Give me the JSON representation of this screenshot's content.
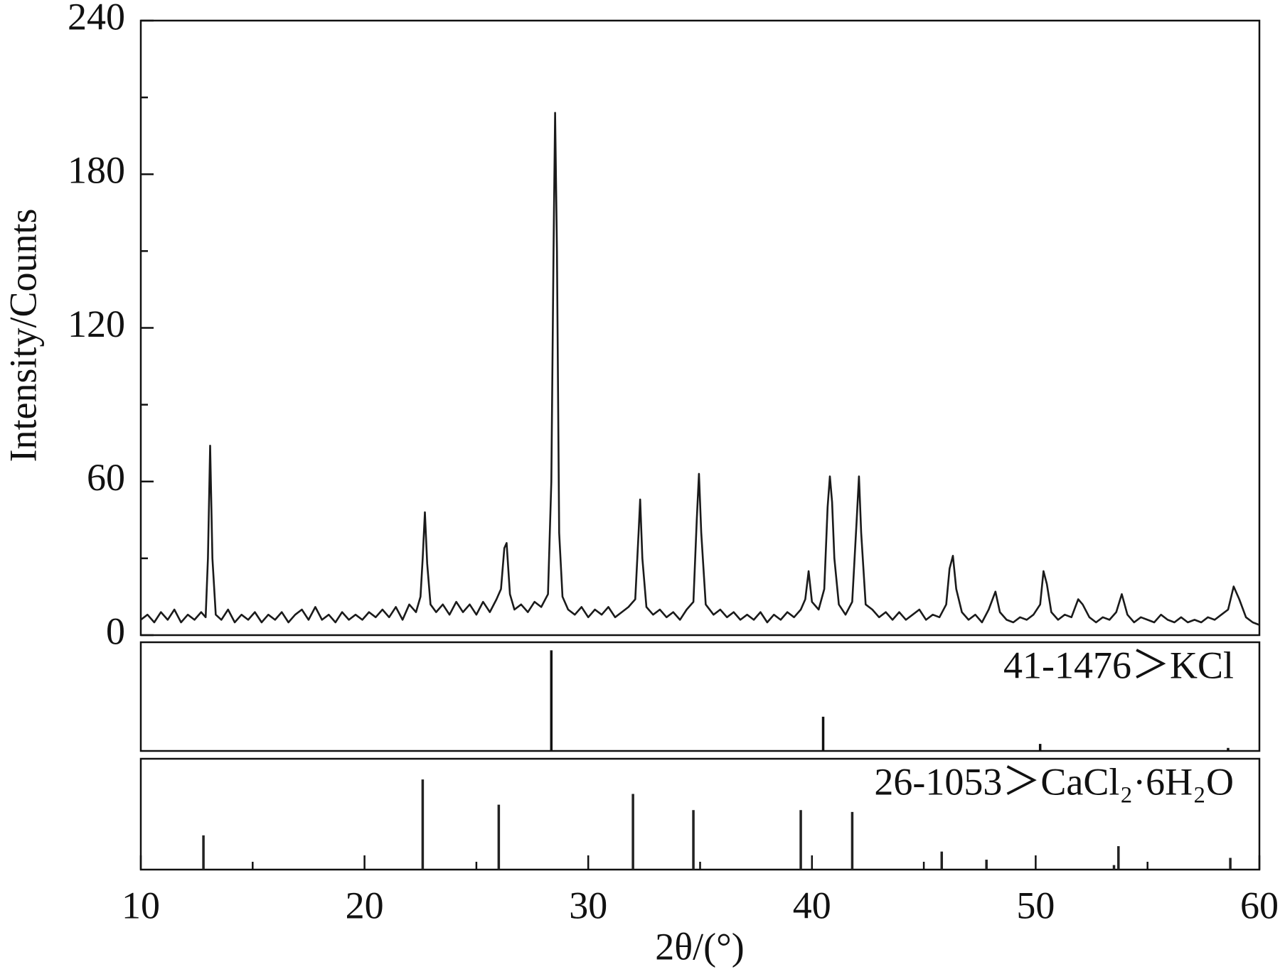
{
  "chart_data": [
    {
      "type": "line",
      "ylabel": "Intensity/Counts",
      "color": "#1a1a1a",
      "ylim": [
        0,
        240
      ],
      "yticks": [
        0,
        60,
        120,
        180,
        240
      ],
      "yminorticks": [
        30,
        90,
        150,
        210
      ],
      "xlim": [
        10,
        60
      ],
      "x": [
        10.0,
        10.3,
        10.6,
        10.9,
        11.2,
        11.5,
        11.8,
        12.1,
        12.4,
        12.7,
        12.9,
        13.0,
        13.1,
        13.2,
        13.35,
        13.6,
        13.9,
        14.2,
        14.5,
        14.8,
        15.1,
        15.4,
        15.7,
        16.0,
        16.3,
        16.6,
        16.9,
        17.2,
        17.5,
        17.8,
        18.1,
        18.4,
        18.7,
        19.0,
        19.3,
        19.6,
        19.9,
        20.2,
        20.5,
        20.8,
        21.1,
        21.4,
        21.7,
        22.0,
        22.3,
        22.5,
        22.6,
        22.7,
        22.8,
        22.95,
        23.2,
        23.5,
        23.8,
        24.1,
        24.4,
        24.7,
        25.0,
        25.3,
        25.6,
        25.9,
        26.1,
        26.25,
        26.35,
        26.5,
        26.7,
        27.0,
        27.3,
        27.6,
        27.9,
        28.2,
        28.35,
        28.45,
        28.52,
        28.6,
        28.7,
        28.85,
        29.1,
        29.4,
        29.7,
        30.0,
        30.3,
        30.6,
        30.9,
        31.2,
        31.5,
        31.8,
        32.1,
        32.25,
        32.32,
        32.42,
        32.6,
        32.9,
        33.2,
        33.5,
        33.8,
        34.1,
        34.4,
        34.7,
        34.85,
        34.95,
        35.05,
        35.25,
        35.6,
        35.9,
        36.2,
        36.5,
        36.8,
        37.1,
        37.4,
        37.7,
        38.0,
        38.3,
        38.6,
        38.9,
        39.2,
        39.5,
        39.7,
        39.85,
        40.0,
        40.3,
        40.55,
        40.7,
        40.8,
        40.9,
        41.0,
        41.2,
        41.5,
        41.8,
        42.0,
        42.1,
        42.2,
        42.4,
        42.7,
        43.0,
        43.3,
        43.6,
        43.9,
        44.2,
        44.5,
        44.8,
        45.1,
        45.4,
        45.7,
        46.0,
        46.15,
        46.3,
        46.45,
        46.7,
        47.0,
        47.3,
        47.6,
        47.9,
        48.2,
        48.4,
        48.7,
        49.0,
        49.3,
        49.6,
        49.9,
        50.2,
        50.35,
        50.5,
        50.7,
        51.0,
        51.3,
        51.6,
        51.9,
        52.1,
        52.4,
        52.7,
        53.0,
        53.3,
        53.6,
        53.85,
        54.1,
        54.4,
        54.7,
        55.0,
        55.3,
        55.6,
        55.9,
        56.2,
        56.5,
        56.8,
        57.1,
        57.4,
        57.7,
        58.0,
        58.3,
        58.6,
        58.85,
        59.1,
        59.4,
        59.7,
        60.0
      ],
      "values": [
        6,
        8,
        5,
        9,
        6,
        10,
        5,
        8,
        6,
        9,
        7,
        30,
        74,
        30,
        8,
        6,
        10,
        5,
        8,
        6,
        9,
        5,
        8,
        6,
        9,
        5,
        8,
        10,
        6,
        11,
        6,
        8,
        5,
        9,
        6,
        8,
        6,
        9,
        7,
        10,
        7,
        11,
        6,
        12,
        9,
        15,
        30,
        48,
        28,
        12,
        9,
        12,
        8,
        13,
        9,
        12,
        8,
        13,
        9,
        14,
        18,
        34,
        36,
        16,
        10,
        12,
        9,
        13,
        11,
        16,
        60,
        150,
        204,
        150,
        40,
        15,
        10,
        8,
        11,
        7,
        10,
        8,
        11,
        7,
        9,
        11,
        14,
        40,
        53,
        30,
        11,
        8,
        10,
        7,
        9,
        6,
        10,
        13,
        45,
        63,
        40,
        12,
        8,
        10,
        7,
        9,
        6,
        8,
        6,
        9,
        5,
        8,
        6,
        9,
        7,
        10,
        14,
        25,
        13,
        10,
        18,
        50,
        62,
        52,
        30,
        12,
        8,
        13,
        45,
        62,
        40,
        12,
        10,
        7,
        9,
        6,
        9,
        6,
        8,
        10,
        6,
        8,
        7,
        12,
        26,
        31,
        18,
        9,
        6,
        8,
        5,
        10,
        17,
        9,
        6,
        5,
        7,
        6,
        8,
        12,
        25,
        20,
        9,
        6,
        8,
        7,
        14,
        12,
        7,
        5,
        7,
        6,
        9,
        16,
        8,
        5,
        7,
        6,
        5,
        8,
        6,
        5,
        7,
        5,
        6,
        5,
        7,
        6,
        8,
        10,
        19,
        14,
        7,
        5,
        4
      ]
    },
    {
      "type": "stem",
      "label": "41-1476＞KCl",
      "color": "#111",
      "xlim": [
        10,
        60
      ],
      "ylim": [
        0,
        108
      ],
      "x": [
        28.35,
        40.5,
        50.2,
        58.6
      ],
      "values": [
        100,
        34,
        7,
        3
      ]
    },
    {
      "type": "stem",
      "label": "26-1053＞CaCl₂·6H₂O",
      "color": "#222",
      "xlim": [
        10,
        60
      ],
      "ylim": [
        0,
        123
      ],
      "x": [
        12.8,
        22.6,
        26.0,
        32.0,
        34.7,
        39.5,
        41.8,
        45.8,
        47.8,
        53.5,
        53.7,
        58.7
      ],
      "values": [
        38,
        100,
        72,
        84,
        66,
        66,
        64,
        20,
        11,
        5,
        26,
        13
      ],
      "xticks": [
        10,
        20,
        30,
        40,
        50,
        60
      ],
      "xminorticks": [
        15,
        25,
        35,
        45,
        55
      ],
      "xlabel": "2θ/(°)"
    }
  ]
}
